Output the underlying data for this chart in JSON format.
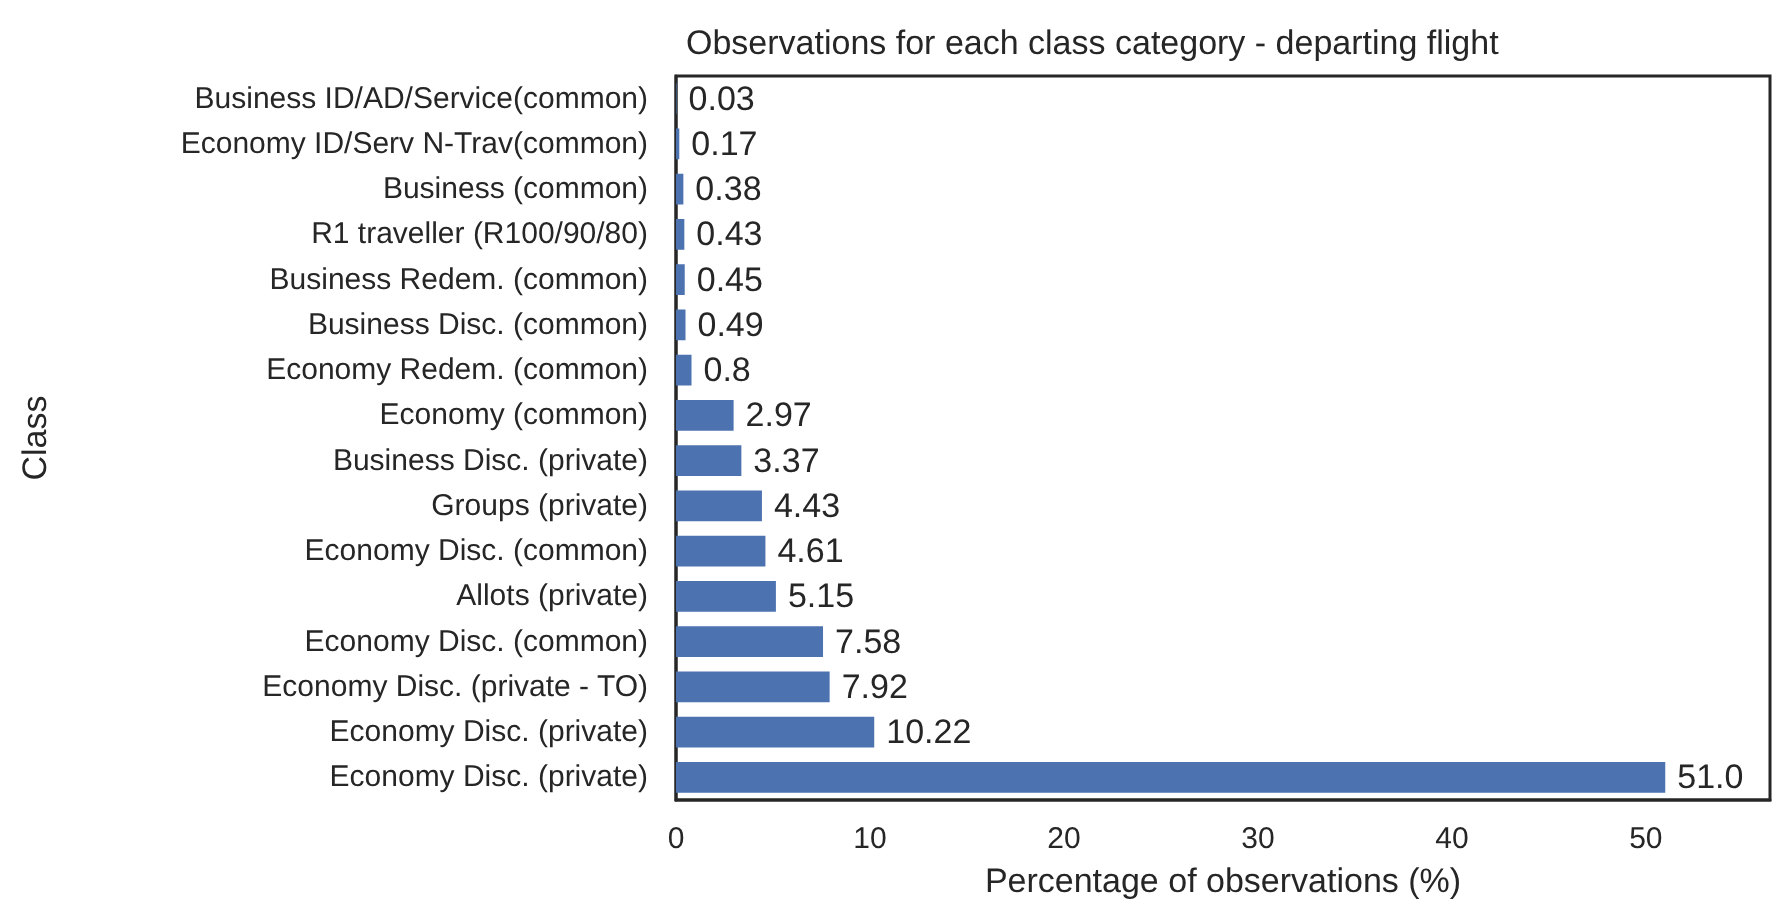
{
  "chart_data": {
    "type": "bar",
    "orientation": "horizontal",
    "title": "Observations for each class category - departing flight",
    "xlabel": "Percentage of observations (%)",
    "ylabel": "Class",
    "categories": [
      "Business ID/AD/Service(common)",
      "Economy ID/Serv N-Trav(common)",
      "Business (common)",
      "R1 traveller (R100/90/80)",
      "Business Redem. (common)",
      "Business Disc. (common)",
      "Economy Redem. (common)",
      "Economy (common)",
      "Business Disc. (private)",
      "Groups (private)",
      "Economy Disc. (common)",
      "Allots (private)",
      "Economy Disc. (common)",
      "Economy Disc. (private - TO)",
      "Economy Disc. (private)",
      "Economy Disc. (private)"
    ],
    "values": [
      0.03,
      0.17,
      0.38,
      0.43,
      0.45,
      0.49,
      0.8,
      2.97,
      3.37,
      4.43,
      4.61,
      5.15,
      7.58,
      7.92,
      10.22,
      51.0
    ],
    "value_labels": [
      "0.03",
      "0.17",
      "0.38",
      "0.43",
      "0.45",
      "0.49",
      "0.8",
      "2.97",
      "3.37",
      "4.43",
      "4.61",
      "5.15",
      "7.58",
      "7.92",
      "10.22",
      "51.0"
    ],
    "color": "#4c72b0",
    "xlim": [
      0,
      56.4
    ],
    "xticks": [
      0,
      10,
      20,
      30,
      40,
      50
    ],
    "grid": false
  }
}
